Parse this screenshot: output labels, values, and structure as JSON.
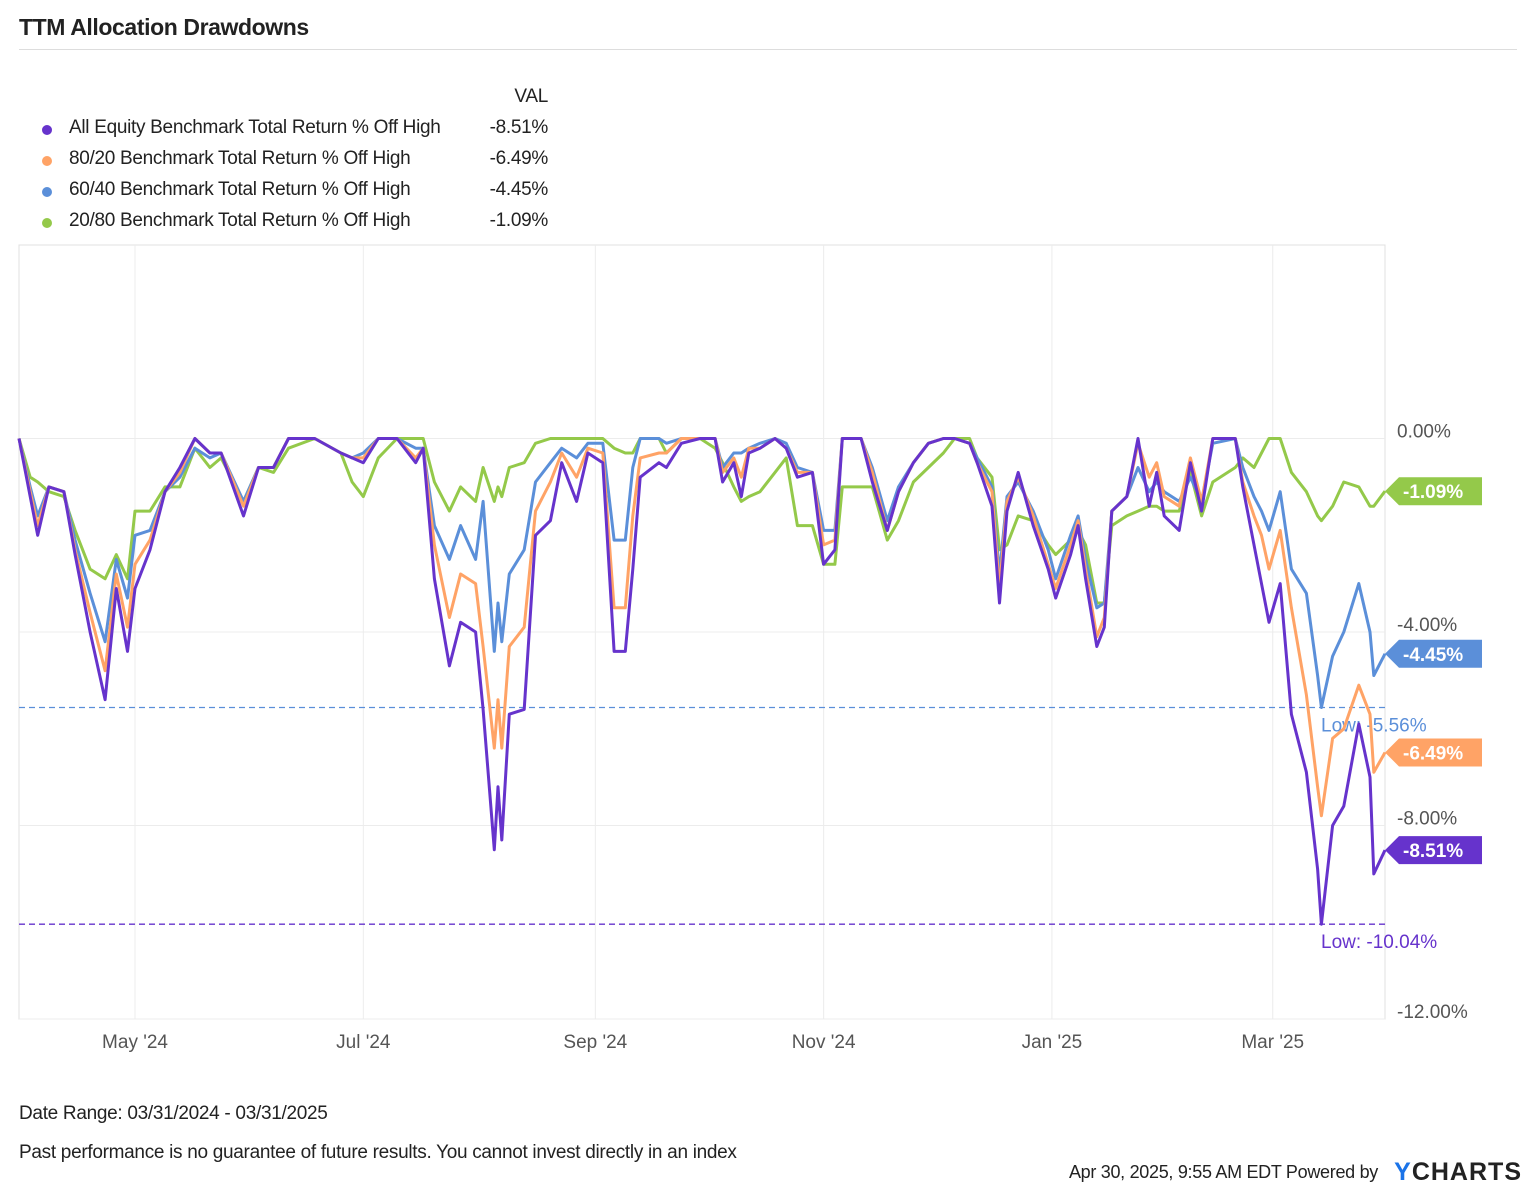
{
  "title": "TTM Allocation Drawdowns",
  "legend": {
    "header": "VAL",
    "items": [
      {
        "label": "All Equity Benchmark Total Return % Off High",
        "value": "-8.51%",
        "color": "#6633cc"
      },
      {
        "label": "80/20 Benchmark Total Return % Off High",
        "value": "-6.49%",
        "color": "#ffa366"
      },
      {
        "label": "60/40 Benchmark Total Return % Off High",
        "value": "-4.45%",
        "color": "#5b8fd9"
      },
      {
        "label": "20/80 Benchmark Total Return % Off High",
        "value": "-1.09%",
        "color": "#94c94a"
      }
    ]
  },
  "footer": {
    "date_range": "Date Range: 03/31/2024 - 03/31/2025",
    "disclaimer": "Past performance is no guarantee of future results. You cannot invest directly in an index",
    "timestamp": "Apr 30, 2025, 9:55 AM EDT Powered by",
    "logo": "YCHARTS"
  },
  "chart_data": {
    "type": "line",
    "title": "TTM Allocation Drawdowns",
    "xlabel": "",
    "ylabel": "",
    "xlim": [
      "2024-03-31",
      "2025-03-31"
    ],
    "ylim": [
      -12,
      4
    ],
    "grid": true,
    "legend_position": "top-left",
    "x_ticks": [
      {
        "date": "2024-05-01",
        "label": "May '24"
      },
      {
        "date": "2024-07-01",
        "label": "Jul '24"
      },
      {
        "date": "2024-09-01",
        "label": "Sep '24"
      },
      {
        "date": "2024-11-01",
        "label": "Nov '24"
      },
      {
        "date": "2025-01-01",
        "label": "Jan '25"
      },
      {
        "date": "2025-03-01",
        "label": "Mar '25"
      }
    ],
    "y_ticks": [
      {
        "value": 0,
        "label": "0.00%"
      },
      {
        "value": -4,
        "label": "-4.00%"
      },
      {
        "value": -8,
        "label": "-8.00%"
      },
      {
        "value": -12,
        "label": "-12.00%"
      }
    ],
    "x": [
      "2024-03-31",
      "2024-04-03",
      "2024-04-05",
      "2024-04-08",
      "2024-04-12",
      "2024-04-15",
      "2024-04-19",
      "2024-04-23",
      "2024-04-26",
      "2024-04-29",
      "2024-05-01",
      "2024-05-05",
      "2024-05-09",
      "2024-05-13",
      "2024-05-17",
      "2024-05-21",
      "2024-05-24",
      "2024-05-30",
      "2024-06-03",
      "2024-06-07",
      "2024-06-11",
      "2024-06-18",
      "2024-06-25",
      "2024-06-28",
      "2024-07-01",
      "2024-07-05",
      "2024-07-10",
      "2024-07-15",
      "2024-07-17",
      "2024-07-20",
      "2024-07-24",
      "2024-07-27",
      "2024-07-31",
      "2024-08-02",
      "2024-08-05",
      "2024-08-06",
      "2024-08-07",
      "2024-08-09",
      "2024-08-13",
      "2024-08-16",
      "2024-08-20",
      "2024-08-23",
      "2024-08-27",
      "2024-08-30",
      "2024-09-03",
      "2024-09-06",
      "2024-09-09",
      "2024-09-11",
      "2024-09-13",
      "2024-09-18",
      "2024-09-20",
      "2024-09-24",
      "2024-09-29",
      "2024-10-03",
      "2024-10-05",
      "2024-10-08",
      "2024-10-10",
      "2024-10-12",
      "2024-10-15",
      "2024-10-19",
      "2024-10-22",
      "2024-10-25",
      "2024-10-29",
      "2024-11-01",
      "2024-11-04",
      "2024-11-06",
      "2024-11-11",
      "2024-11-14",
      "2024-11-18",
      "2024-11-21",
      "2024-11-25",
      "2024-11-29",
      "2024-12-03",
      "2024-12-06",
      "2024-12-10",
      "2024-12-12",
      "2024-12-16",
      "2024-12-18",
      "2024-12-20",
      "2024-12-23",
      "2024-12-27",
      "2024-12-31",
      "2025-01-02",
      "2025-01-06",
      "2025-01-08",
      "2025-01-10",
      "2025-01-13",
      "2025-01-15",
      "2025-01-17",
      "2025-01-21",
      "2025-01-24",
      "2025-01-27",
      "2025-01-29",
      "2025-01-31",
      "2025-02-04",
      "2025-02-07",
      "2025-02-10",
      "2025-02-13",
      "2025-02-19",
      "2025-02-21",
      "2025-02-24",
      "2025-02-26",
      "2025-02-28",
      "2025-03-03",
      "2025-03-06",
      "2025-03-10",
      "2025-03-13",
      "2025-03-14",
      "2025-03-17",
      "2025-03-20",
      "2025-03-24",
      "2025-03-27",
      "2025-03-28",
      "2025-03-31"
    ],
    "series": [
      {
        "name": "All Equity Benchmark Total Return % Off High",
        "color": "#6633cc",
        "last": "-8.51%",
        "low": {
          "value": -10.04,
          "label": "Low: -10.04%"
        },
        "values": [
          0,
          -1.2,
          -2.0,
          -1.0,
          -1.1,
          -2.4,
          -4.0,
          -5.4,
          -3.1,
          -4.4,
          -3.1,
          -2.3,
          -1.1,
          -0.6,
          0,
          -0.3,
          -0.3,
          -1.6,
          -0.6,
          -0.6,
          0,
          0,
          -0.3,
          -0.4,
          -0.5,
          0,
          0,
          -0.5,
          -0.2,
          -2.9,
          -4.7,
          -3.8,
          -4.0,
          -5.6,
          -8.5,
          -7.2,
          -8.3,
          -5.7,
          -5.6,
          -2.0,
          -1.7,
          -0.5,
          -1.3,
          -0.3,
          -0.5,
          -4.4,
          -4.4,
          -2.7,
          -0.8,
          -0.5,
          -0.6,
          -0.1,
          0,
          0,
          -0.9,
          -0.5,
          -1.2,
          -0.3,
          -0.2,
          0,
          -0.2,
          -0.8,
          -0.7,
          -2.6,
          -2.3,
          0,
          0,
          -0.9,
          -1.9,
          -1.1,
          -0.5,
          -0.1,
          0,
          0,
          -0.1,
          -0.5,
          -1.4,
          -3.4,
          -1.5,
          -0.7,
          -1.8,
          -2.7,
          -3.3,
          -2.4,
          -1.8,
          -2.9,
          -4.3,
          -3.9,
          -1.5,
          -1.2,
          0,
          -1.4,
          -0.7,
          -1.6,
          -1.9,
          -0.5,
          -1.5,
          0,
          0,
          -1.0,
          -2.2,
          -3.0,
          -3.8,
          -3.0,
          -5.7,
          -6.9,
          -8.9,
          -10.04,
          -8.0,
          -7.6,
          -5.9,
          -7.0,
          -9.0,
          -8.51
        ]
      },
      {
        "name": "80/20 Benchmark Total Return % Off High",
        "color": "#ffa366",
        "last": "-6.49%",
        "values": [
          0,
          -1.1,
          -1.8,
          -1.0,
          -1.1,
          -2.3,
          -3.6,
          -4.8,
          -2.8,
          -3.9,
          -2.6,
          -2.1,
          -1.1,
          -0.7,
          0,
          -0.3,
          -0.3,
          -1.4,
          -0.6,
          -0.6,
          0,
          0,
          -0.3,
          -0.4,
          -0.4,
          0,
          0,
          -0.4,
          -0.2,
          -2.2,
          -3.7,
          -2.8,
          -3.0,
          -4.3,
          -6.4,
          -5.4,
          -6.4,
          -4.3,
          -3.9,
          -1.5,
          -0.9,
          -0.3,
          -0.8,
          -0.2,
          -0.3,
          -3.5,
          -3.5,
          -1.6,
          -0.4,
          -0.3,
          -0.3,
          0,
          0,
          0,
          -0.7,
          -0.4,
          -0.8,
          -0.2,
          -0.2,
          0,
          -0.2,
          -0.7,
          -0.7,
          -2.2,
          -2.1,
          0,
          0,
          -0.7,
          -1.9,
          -1.1,
          -0.5,
          -0.1,
          0,
          0,
          -0.1,
          -0.5,
          -1.1,
          -3.1,
          -1.3,
          -0.8,
          -1.6,
          -2.6,
          -3.1,
          -2.2,
          -1.7,
          -2.7,
          -4.1,
          -3.7,
          -1.5,
          -1.2,
          -0.1,
          -0.8,
          -0.5,
          -1.2,
          -1.4,
          -0.4,
          -1.3,
          0,
          0,
          -0.9,
          -1.6,
          -2.0,
          -2.7,
          -1.9,
          -3.5,
          -5.3,
          -7.2,
          -7.8,
          -6.2,
          -6.0,
          -5.1,
          -5.7,
          -6.9,
          -6.49
        ]
      },
      {
        "name": "60/40 Benchmark Total Return % Off High",
        "color": "#5b8fd9",
        "last": "-4.45%",
        "low": {
          "value": -5.56,
          "label": "Low: -5.56%"
        },
        "values": [
          0,
          -1.0,
          -1.6,
          -1.0,
          -1.1,
          -2.1,
          -3.2,
          -4.2,
          -2.5,
          -3.3,
          -2.0,
          -1.9,
          -1.1,
          -0.8,
          -0.2,
          -0.4,
          -0.3,
          -1.3,
          -0.6,
          -0.6,
          0,
          0,
          -0.3,
          -0.4,
          -0.3,
          0,
          0,
          -0.2,
          -0.2,
          -1.8,
          -2.5,
          -1.8,
          -2.5,
          -1.3,
          -4.4,
          -3.4,
          -4.2,
          -2.8,
          -2.3,
          -0.9,
          -0.5,
          -0.2,
          -0.4,
          -0.1,
          -0.1,
          -2.1,
          -2.1,
          -0.6,
          0,
          0,
          -0.1,
          0,
          0,
          0,
          -0.6,
          -0.3,
          -0.3,
          -0.2,
          -0.1,
          0,
          -0.1,
          -0.6,
          -0.7,
          -1.9,
          -1.9,
          0,
          0,
          -0.6,
          -1.7,
          -1.0,
          -0.5,
          -0.1,
          0,
          0,
          -0.1,
          -0.4,
          -1.0,
          -2.8,
          -1.2,
          -0.9,
          -1.5,
          -2.3,
          -2.9,
          -2.0,
          -1.6,
          -2.5,
          -3.5,
          -3.4,
          -1.5,
          -1.2,
          -0.6,
          -1.1,
          -0.9,
          -1.1,
          -1.3,
          -0.8,
          -1.3,
          -0.1,
          0,
          -0.6,
          -1.2,
          -1.5,
          -1.9,
          -1.1,
          -2.7,
          -3.2,
          -4.9,
          -5.56,
          -4.5,
          -4.0,
          -3.0,
          -4.0,
          -4.9,
          -4.45
        ]
      },
      {
        "name": "20/80 Benchmark Total Return % Off High",
        "color": "#94c94a",
        "last": "-1.09%",
        "values": [
          0,
          -0.8,
          -0.9,
          -1.1,
          -1.2,
          -1.9,
          -2.7,
          -2.9,
          -2.4,
          -2.9,
          -1.5,
          -1.5,
          -1.0,
          -1.0,
          -0.2,
          -0.6,
          -0.4,
          -1.3,
          -0.6,
          -0.7,
          -0.2,
          0,
          -0.3,
          -0.9,
          -1.2,
          -0.4,
          0,
          0,
          0,
          -0.9,
          -1.5,
          -1.0,
          -1.3,
          -0.6,
          -1.3,
          -1.0,
          -1.2,
          -0.6,
          -0.5,
          -0.1,
          0,
          0,
          0,
          0,
          0,
          -0.2,
          -0.3,
          -0.3,
          0,
          0,
          -0.3,
          0,
          0,
          -0.2,
          -0.5,
          -1.0,
          -1.3,
          -1.2,
          -1.1,
          -0.7,
          -0.4,
          -1.8,
          -1.8,
          -2.6,
          -2.6,
          -1.0,
          -1.0,
          -1.0,
          -2.1,
          -1.7,
          -0.9,
          -0.6,
          -0.3,
          0,
          0,
          -0.4,
          -0.8,
          -2.3,
          -2.2,
          -1.6,
          -1.7,
          -2.2,
          -2.4,
          -2.1,
          -1.9,
          -2.2,
          -3.4,
          -3.4,
          -1.8,
          -1.6,
          -1.5,
          -1.4,
          -1.4,
          -1.5,
          -1.5,
          -0.7,
          -1.6,
          -0.9,
          -0.6,
          -0.4,
          -0.6,
          -0.3,
          0,
          0,
          -0.7,
          -1.1,
          -1.6,
          -1.7,
          -1.4,
          -0.9,
          -1.0,
          -1.4,
          -1.4,
          -1.09
        ]
      }
    ]
  }
}
